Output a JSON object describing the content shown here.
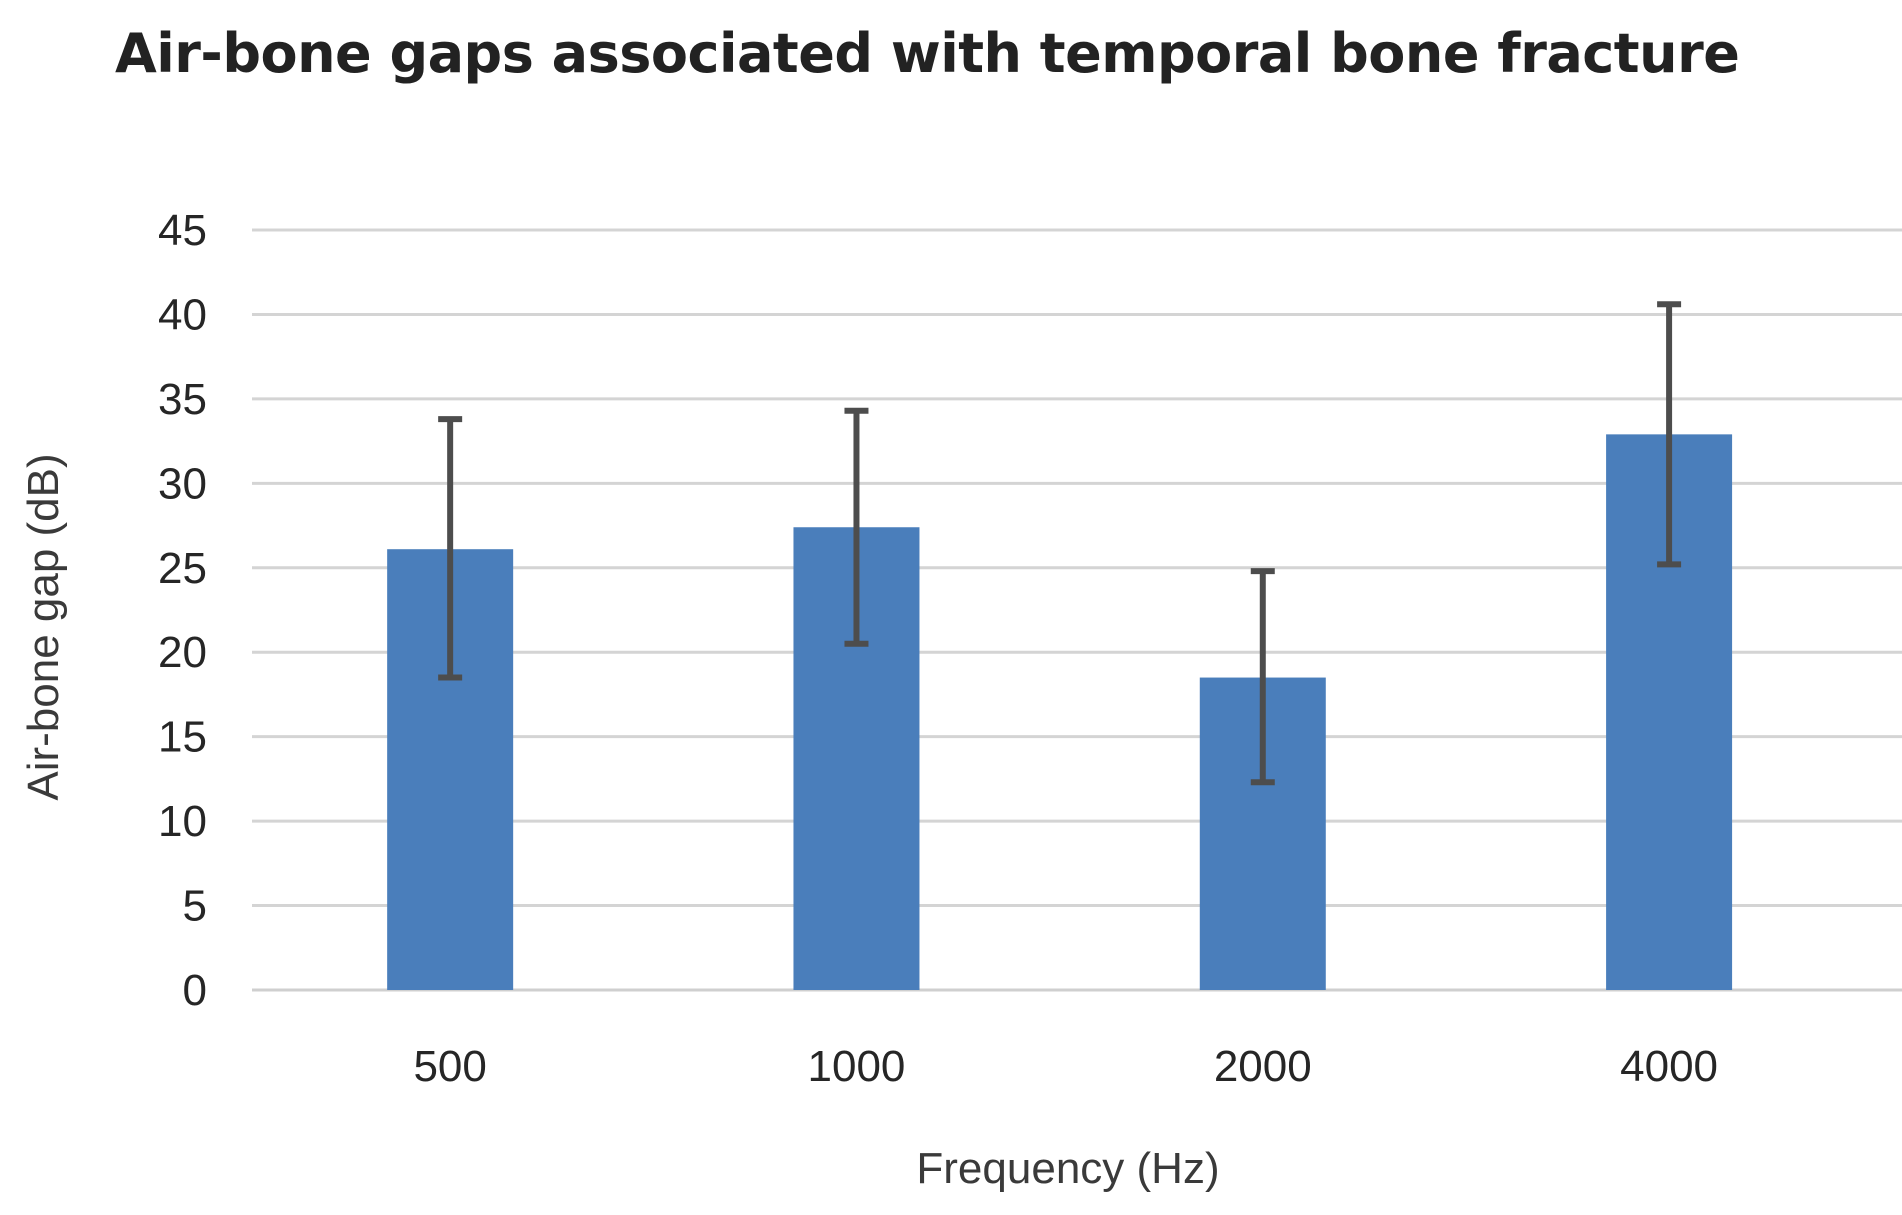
{
  "chart_data": {
    "type": "bar",
    "title": "Air-bone gaps associated with temporal bone fracture",
    "xlabel": "Frequency (Hz)",
    "ylabel": "Air-bone gap (dB)",
    "categories": [
      "500",
      "1000",
      "2000",
      "4000"
    ],
    "values": [
      26.1,
      27.4,
      18.5,
      32.9
    ],
    "error_low": [
      18.5,
      20.5,
      12.3,
      25.2
    ],
    "error_high": [
      33.8,
      34.3,
      24.8,
      40.6
    ],
    "ylim": [
      0,
      45
    ],
    "yticks": [
      "0",
      "5",
      "10",
      "15",
      "20",
      "25",
      "30",
      "35",
      "40",
      "45"
    ],
    "grid": true,
    "legend": "none",
    "colors": {
      "bar": "#4a7ebb",
      "error_bar": "#4d4d4d",
      "gridline": "#d4d4d4"
    }
  }
}
